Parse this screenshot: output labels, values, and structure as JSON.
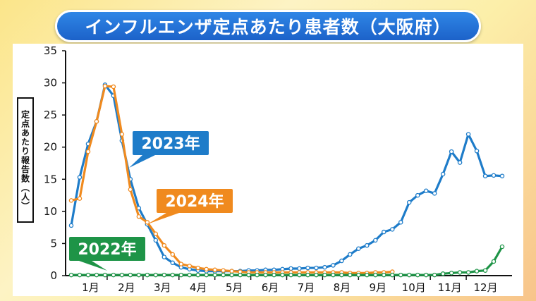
{
  "title": "インフルエンザ定点あたり患者数（大阪府）",
  "ylabel": "定点あたり報告数（人）",
  "chart_data": {
    "type": "line",
    "title": "インフルエンザ定点あたり患者数（大阪府）",
    "xlabel": "",
    "ylabel": "定点あたり報告数（人）",
    "ylim": [
      0,
      35
    ],
    "yticks": [
      "0",
      "5",
      "10",
      "15",
      "20",
      "25",
      "30",
      "35"
    ],
    "month_labels": [
      "1月",
      "2月",
      "3月",
      "4月",
      "5月",
      "6月",
      "7月",
      "8月",
      "9月",
      "10月",
      "11月",
      "12月"
    ],
    "week_range": [
      1,
      52
    ],
    "grid": false,
    "series": [
      {
        "name": "2023年",
        "color": "#1e7cc9",
        "weeks": [
          1,
          2,
          3,
          4,
          5,
          6,
          7,
          8,
          9,
          10,
          11,
          12,
          13,
          14,
          15,
          16,
          17,
          18,
          19,
          20,
          21,
          22,
          23,
          24,
          25,
          26,
          27,
          28,
          29,
          30,
          31,
          32,
          33,
          34,
          35,
          36,
          37,
          38,
          39,
          40,
          41,
          42,
          43,
          44,
          45,
          46,
          47,
          48,
          49,
          50,
          51,
          52
        ],
        "values": [
          7.8,
          15.3,
          20.5,
          24,
          29.7,
          28,
          21,
          15,
          10.5,
          8,
          5.5,
          2.9,
          2,
          1.3,
          1,
          0.8,
          0.7,
          0.7,
          0.7,
          0.7,
          0.7,
          0.8,
          0.8,
          0.9,
          0.9,
          1,
          1.1,
          1.1,
          1.2,
          1.2,
          1.3,
          1.6,
          2.3,
          3.3,
          4.2,
          4.7,
          5.5,
          6.8,
          7.2,
          8.3,
          11.4,
          12.5,
          13.2,
          12.8,
          15.8,
          19.3,
          17.6,
          22,
          19.4,
          15.5,
          15.6,
          15.5
        ]
      },
      {
        "name": "2024年",
        "color": "#f08a1e",
        "weeks": [
          1,
          2,
          3,
          4,
          5,
          6,
          7,
          8,
          9,
          10,
          11,
          12,
          13,
          14,
          15,
          16,
          17,
          18,
          19,
          20,
          21,
          22,
          23,
          24,
          25,
          26,
          27,
          28,
          29,
          30,
          31,
          32,
          33,
          34,
          35,
          36,
          37,
          38,
          39
        ],
        "values": [
          11.7,
          12,
          19.3,
          24,
          29.5,
          29.4,
          22,
          13.4,
          9.2,
          8.3,
          6.5,
          4.7,
          3.3,
          1.8,
          1.5,
          1.2,
          1,
          0.9,
          0.8,
          0.7,
          0.6,
          0.5,
          0.5,
          0.5,
          0.5,
          0.5,
          0.5,
          0.5,
          0.5,
          0.5,
          0.5,
          0.5,
          0.5,
          0.4,
          0.4,
          0.4,
          0.5,
          0.5,
          0.6
        ]
      },
      {
        "name": "2022年",
        "color": "#1e9447",
        "weeks": [
          1,
          2,
          3,
          4,
          5,
          6,
          7,
          8,
          9,
          10,
          11,
          12,
          13,
          14,
          15,
          16,
          17,
          18,
          19,
          20,
          21,
          22,
          23,
          24,
          25,
          26,
          27,
          28,
          29,
          30,
          31,
          32,
          33,
          34,
          35,
          36,
          37,
          38,
          39,
          40,
          41,
          42,
          43,
          44,
          45,
          46,
          47,
          48,
          49,
          50,
          51,
          52
        ],
        "values": [
          0.1,
          0.1,
          0.1,
          0.1,
          0.1,
          0.1,
          0.1,
          0.1,
          0.1,
          0.1,
          0.1,
          0.1,
          0.1,
          0.1,
          0.1,
          0.1,
          0.1,
          0.1,
          0.1,
          0.1,
          0.1,
          0.1,
          0.1,
          0.1,
          0.1,
          0.1,
          0.1,
          0.1,
          0.1,
          0.1,
          0.1,
          0.1,
          0.1,
          0.1,
          0.1,
          0.1,
          0.1,
          0.1,
          0.1,
          0.1,
          0.1,
          0.1,
          0.1,
          0.1,
          0.3,
          0.4,
          0.5,
          0.5,
          0.7,
          0.8,
          2.2,
          4.5
        ]
      }
    ],
    "annotations": [
      {
        "text": "2023年",
        "color": "#1e7cc9"
      },
      {
        "text": "2024年",
        "color": "#f08a1e"
      },
      {
        "text": "2022年",
        "color": "#1e9447"
      }
    ]
  }
}
